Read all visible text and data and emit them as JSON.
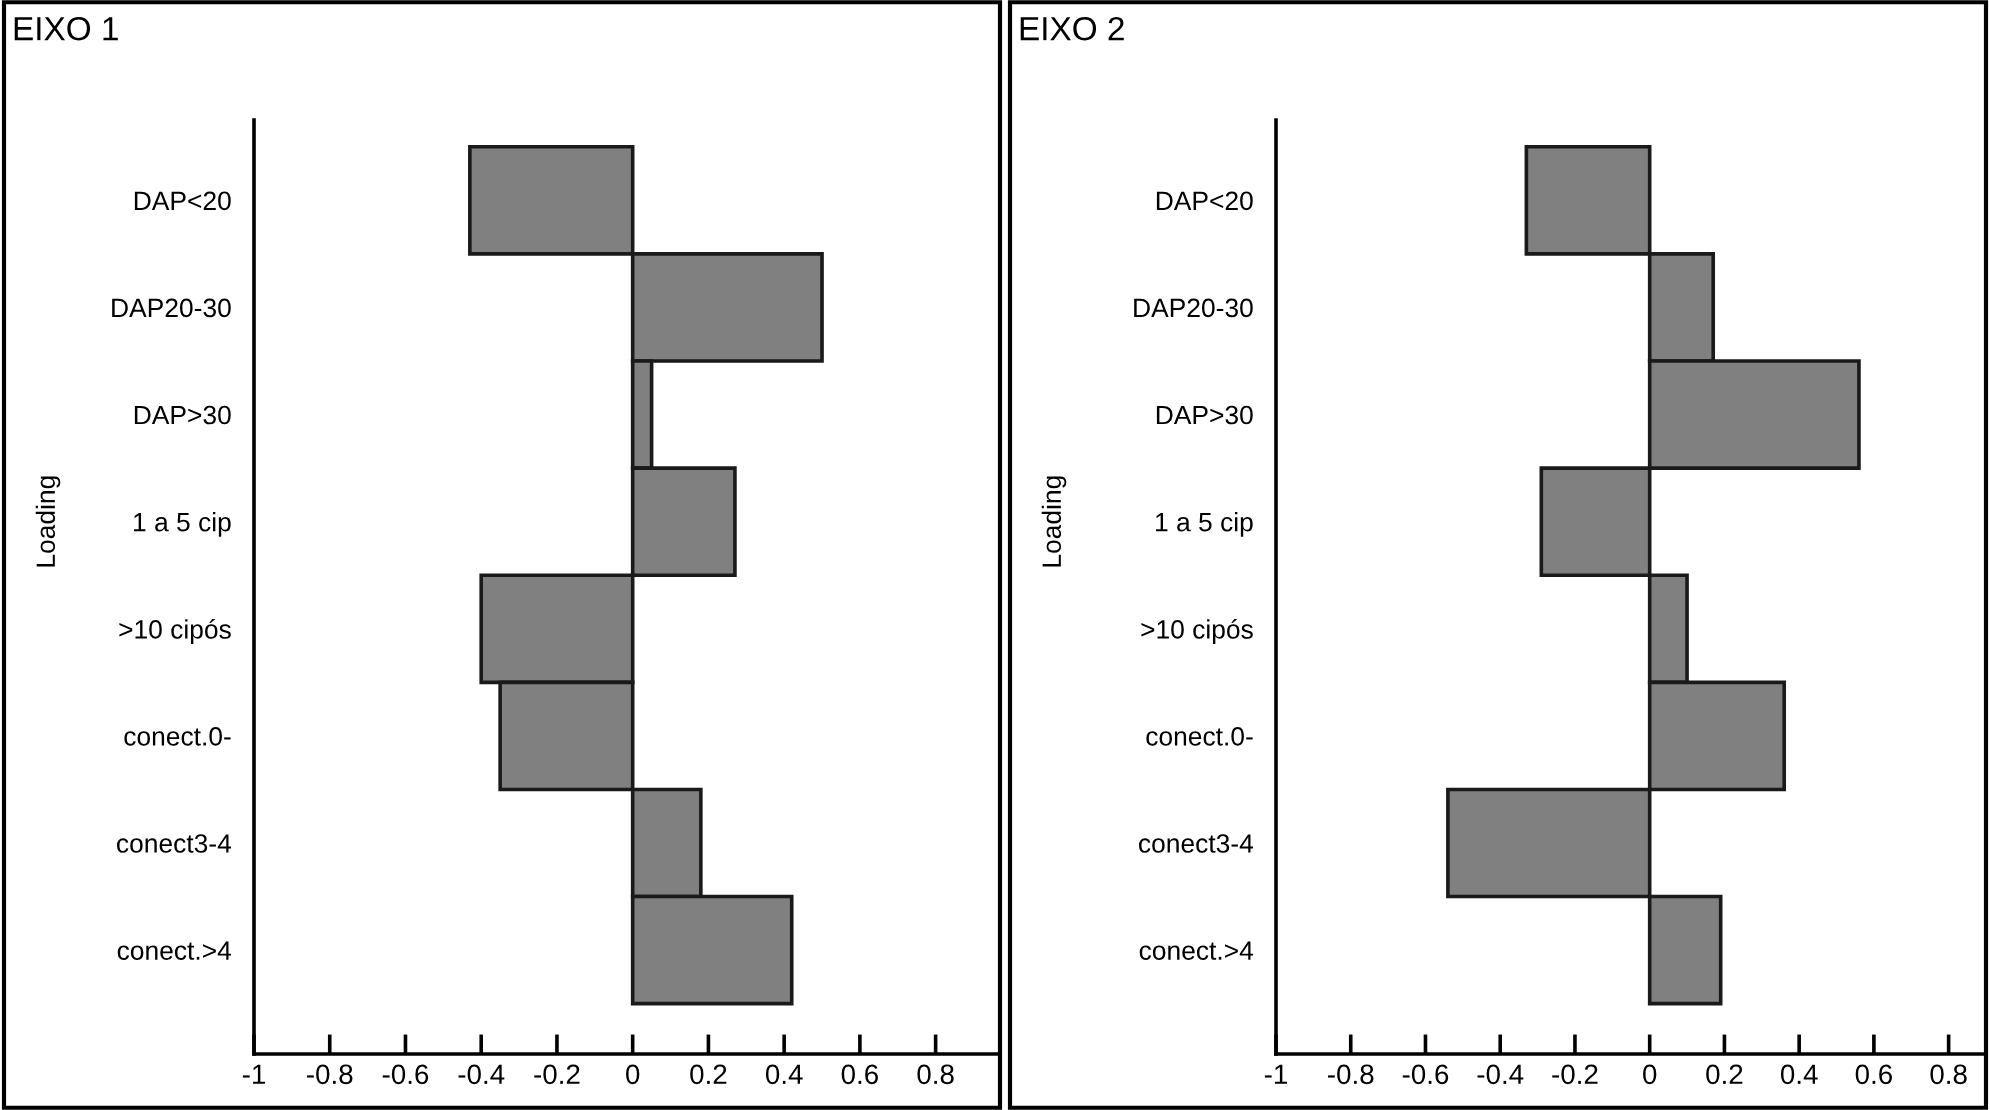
{
  "chart_data": [
    {
      "type": "bar",
      "orientation": "horizontal",
      "title": "EIXO 1",
      "ylabel": "Loading",
      "categories": [
        "DAP<20",
        "DAP20-30",
        "DAP>30",
        "1 a 5 cip",
        ">10 cipós",
        "conect.0-",
        "conect3-4",
        "conect.>4"
      ],
      "series": [
        {
          "color": "#808080",
          "values": [
            -0.43,
            0.5,
            0.05,
            0.27,
            -0.4,
            -0.35,
            0.18,
            0.42
          ]
        }
      ],
      "xlim": [
        -1,
        0.97
      ],
      "xticks": [
        -1,
        -0.8,
        -0.6,
        -0.4,
        -0.2,
        0,
        0.2,
        0.4,
        0.6,
        0.8
      ],
      "grid": false,
      "legend": false
    },
    {
      "type": "bar",
      "orientation": "horizontal",
      "title": "EIXO 2",
      "ylabel": "Loading",
      "categories": [
        "DAP<20",
        "DAP20-30",
        "DAP>30",
        "1 a 5 cip",
        ">10 cipós",
        "conect.0-",
        "conect3-4",
        "conect.>4"
      ],
      "series": [
        {
          "color": "#808080",
          "values": [
            -0.33,
            0.17,
            0.56,
            -0.29,
            0.1,
            0.36,
            -0.54,
            0.19
          ]
        }
      ],
      "xlim": [
        -1,
        0.9
      ],
      "xticks": [
        -1,
        -0.8,
        -0.6,
        -0.4,
        -0.2,
        0,
        0.2,
        0.4,
        0.6,
        0.8
      ],
      "grid": false,
      "legend": false
    }
  ]
}
